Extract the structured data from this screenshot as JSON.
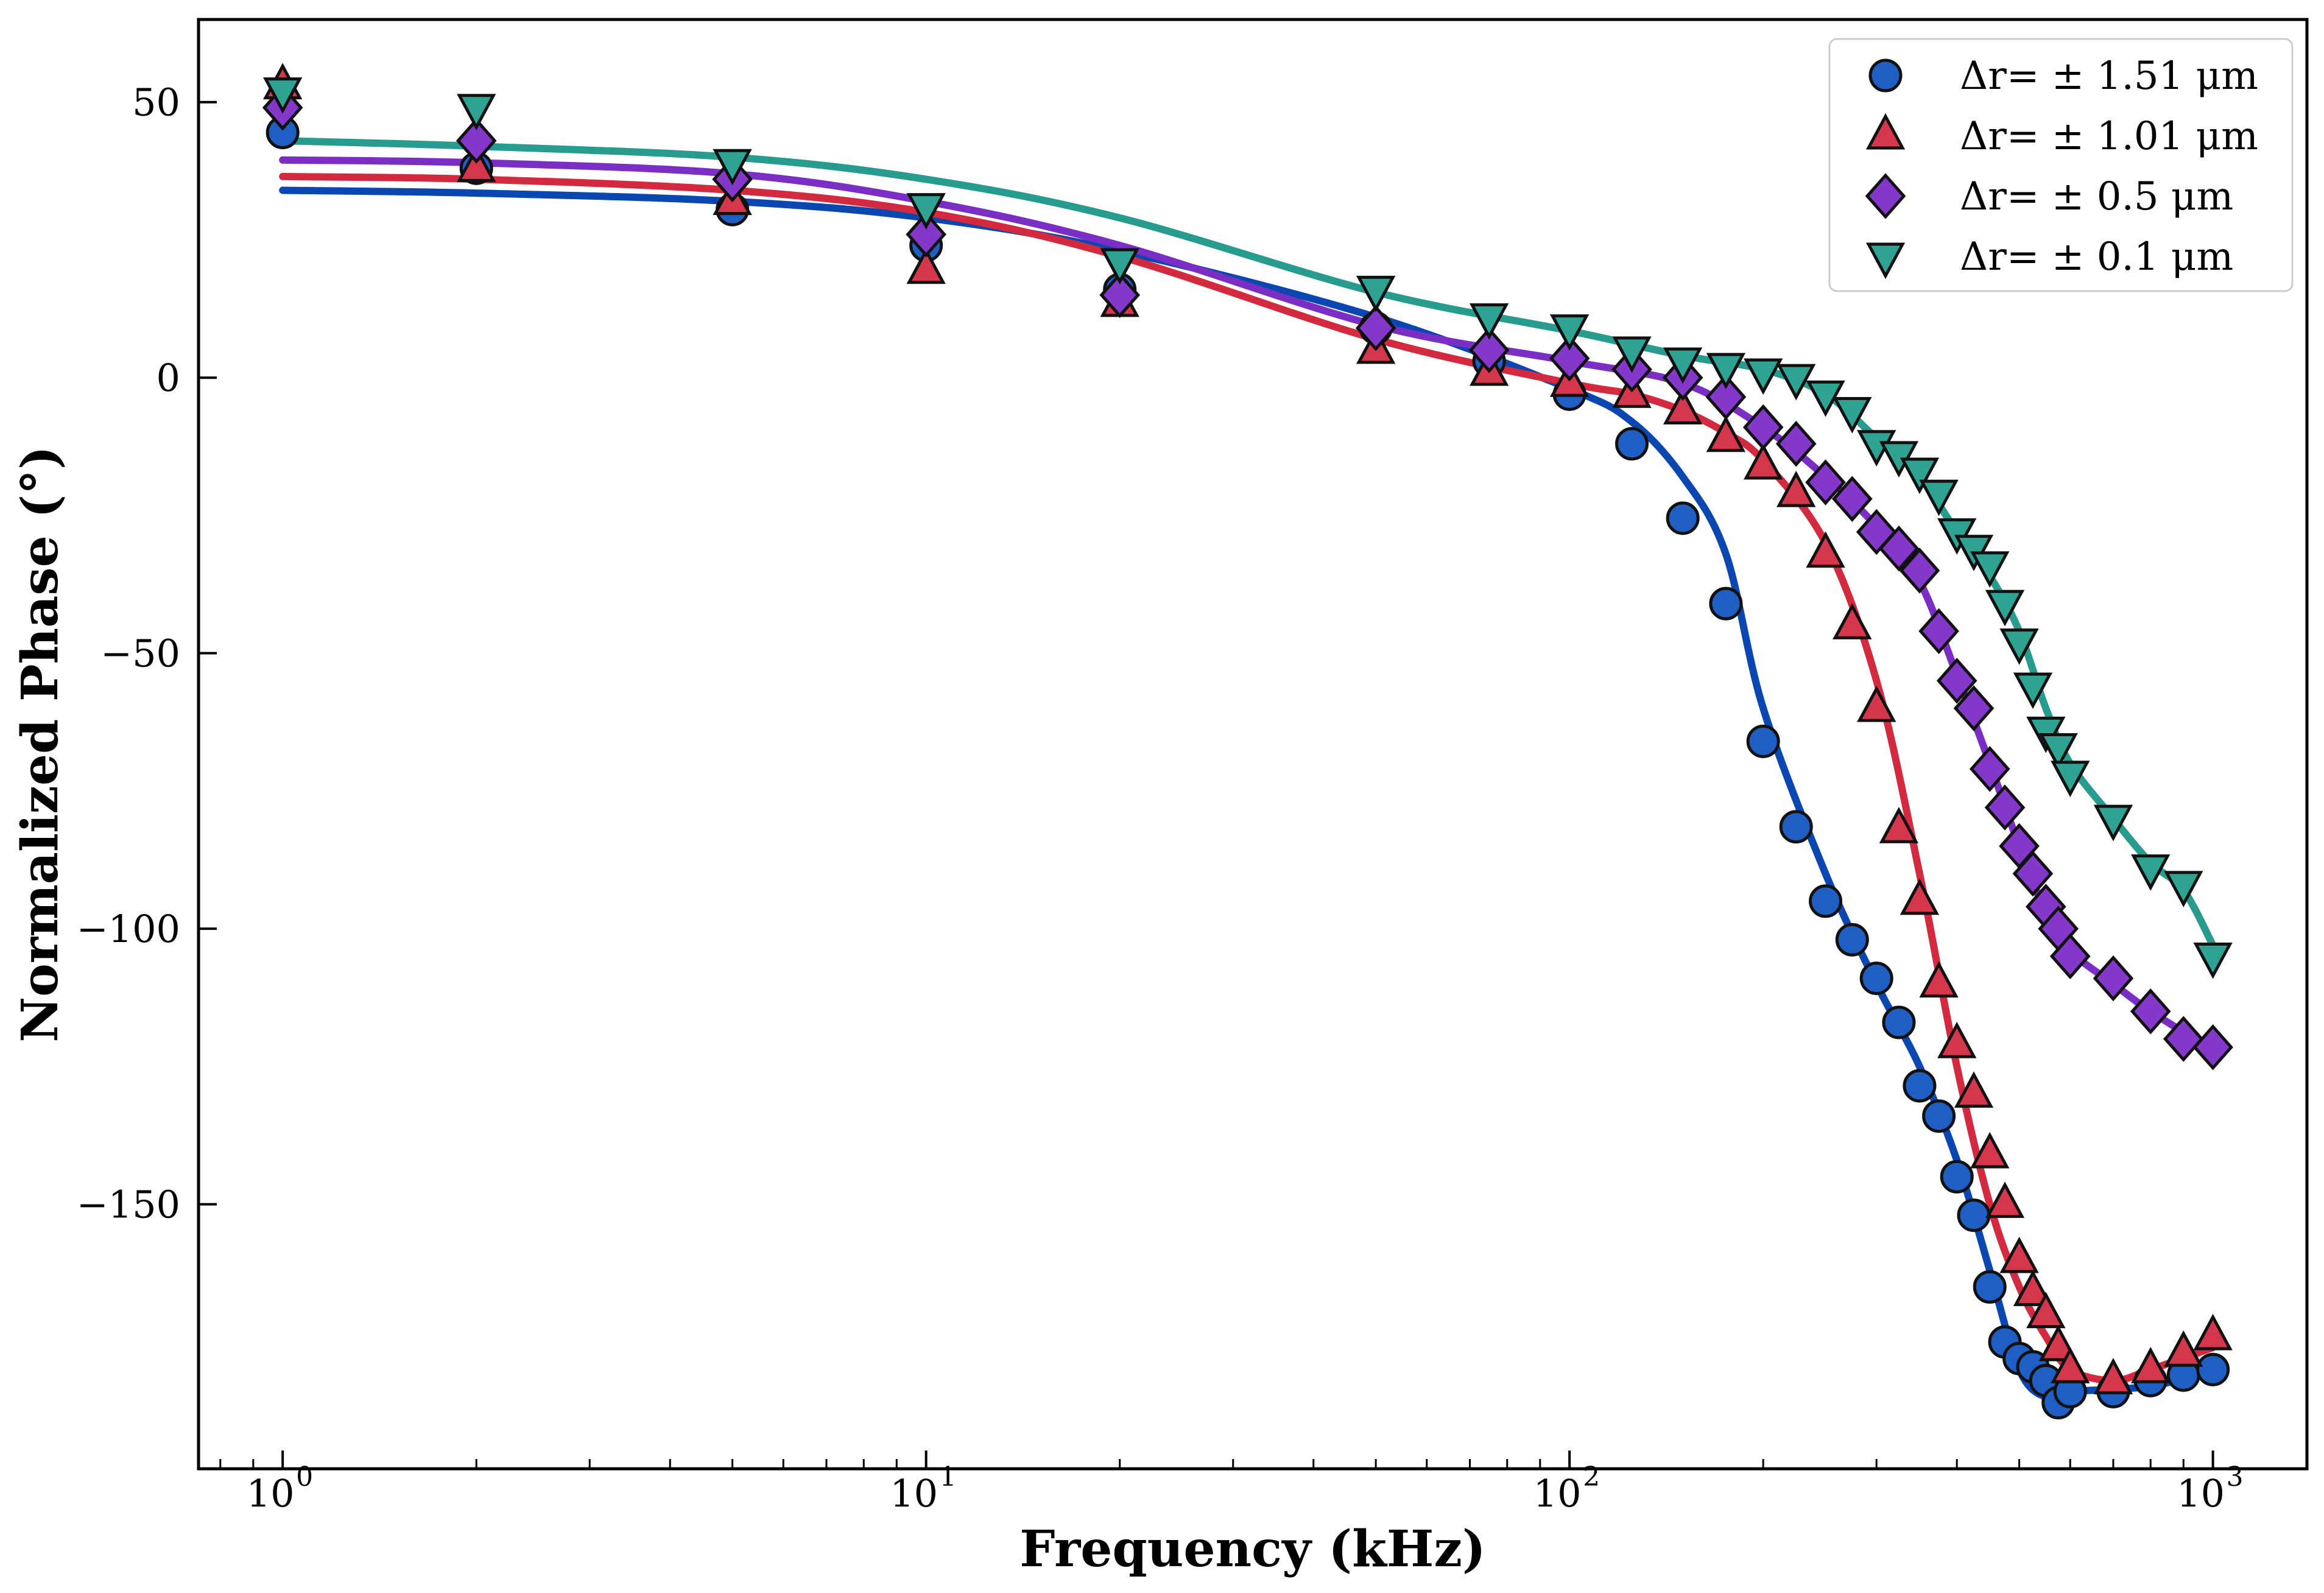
{
  "chart_data": {
    "type": "scatter",
    "title": "",
    "xlabel": "Frequency (kHz)",
    "ylabel": "Normalized Phase (°)",
    "xscale": "log",
    "xlim": [
      0.74,
      1400
    ],
    "ylim": [
      -198,
      65
    ],
    "grid": false,
    "legend_position": "top-right",
    "x_ticks": [
      {
        "value": 1,
        "label": "10",
        "exp": "0"
      },
      {
        "value": 10,
        "label": "10",
        "exp": "1"
      },
      {
        "value": 100,
        "label": "10",
        "exp": "2"
      },
      {
        "value": 1000,
        "label": "10",
        "exp": "3"
      }
    ],
    "y_ticks": [
      {
        "value": 50,
        "label": "50"
      },
      {
        "value": 0,
        "label": "0"
      },
      {
        "value": -50,
        "label": "−50"
      },
      {
        "value": -100,
        "label": "−100"
      },
      {
        "value": -150,
        "label": "−150"
      }
    ],
    "series": [
      {
        "name": "Δr= ± 1.51 μm",
        "marker": "circle",
        "color": "#0a47b0",
        "marker_color": "#1f5fc4",
        "points": [
          [
            1,
            44.5
          ],
          [
            2,
            38
          ],
          [
            5,
            30.5
          ],
          [
            10,
            24
          ],
          [
            20,
            16
          ],
          [
            50,
            9
          ],
          [
            75,
            3
          ],
          [
            100,
            -3
          ],
          [
            125,
            -12
          ],
          [
            150,
            -25.5
          ],
          [
            175,
            -41
          ],
          [
            200,
            -66
          ],
          [
            225,
            -81.5
          ],
          [
            250,
            -95
          ],
          [
            275,
            -102
          ],
          [
            300,
            -109
          ],
          [
            325,
            -117
          ],
          [
            350,
            -128.5
          ],
          [
            375,
            -134
          ],
          [
            400,
            -145
          ],
          [
            425,
            -152
          ],
          [
            450,
            -165
          ],
          [
            475,
            -175
          ],
          [
            500,
            -178
          ],
          [
            525,
            -179.5
          ],
          [
            550,
            -182
          ],
          [
            575,
            -186
          ],
          [
            600,
            -184
          ],
          [
            700,
            -184
          ],
          [
            800,
            -182
          ],
          [
            900,
            -181
          ],
          [
            1000,
            -180
          ]
        ],
        "fit": [
          [
            1,
            34
          ],
          [
            2,
            33.5
          ],
          [
            5,
            32
          ],
          [
            10,
            29
          ],
          [
            20,
            23
          ],
          [
            50,
            11
          ],
          [
            100,
            -2
          ],
          [
            125,
            -8
          ],
          [
            150,
            -18
          ],
          [
            175,
            -32
          ],
          [
            200,
            -60
          ],
          [
            250,
            -90
          ],
          [
            300,
            -110
          ],
          [
            350,
            -125
          ],
          [
            400,
            -142
          ],
          [
            450,
            -162
          ],
          [
            500,
            -180
          ],
          [
            550,
            -185
          ],
          [
            600,
            -184
          ],
          [
            800,
            -183
          ],
          [
            1000,
            -180
          ]
        ]
      },
      {
        "name": "Δr= ± 1.01 μm",
        "marker": "triangle-up",
        "color": "#d42a3f",
        "marker_color": "#d4364b",
        "points": [
          [
            1,
            53
          ],
          [
            2,
            38
          ],
          [
            5,
            32
          ],
          [
            10,
            19.5
          ],
          [
            20,
            13.5
          ],
          [
            50,
            5
          ],
          [
            75,
            1
          ],
          [
            100,
            -1
          ],
          [
            125,
            -3
          ],
          [
            150,
            -6
          ],
          [
            175,
            -11
          ],
          [
            200,
            -16
          ],
          [
            225,
            -21
          ],
          [
            250,
            -32
          ],
          [
            275,
            -45
          ],
          [
            300,
            -60
          ],
          [
            325,
            -82
          ],
          [
            350,
            -95
          ],
          [
            375,
            -110
          ],
          [
            400,
            -121
          ],
          [
            425,
            -130
          ],
          [
            450,
            -141
          ],
          [
            475,
            -150
          ],
          [
            500,
            -160
          ],
          [
            525,
            -166
          ],
          [
            550,
            -170
          ],
          [
            575,
            -176
          ],
          [
            600,
            -180
          ],
          [
            700,
            -182
          ],
          [
            800,
            -180
          ],
          [
            900,
            -177
          ],
          [
            1000,
            -174
          ]
        ],
        "fit": [
          [
            1,
            36.5
          ],
          [
            2,
            36
          ],
          [
            5,
            34
          ],
          [
            10,
            30
          ],
          [
            20,
            22
          ],
          [
            50,
            7
          ],
          [
            100,
            -1
          ],
          [
            125,
            -3
          ],
          [
            150,
            -6
          ],
          [
            175,
            -10
          ],
          [
            200,
            -15
          ],
          [
            250,
            -30
          ],
          [
            300,
            -55
          ],
          [
            350,
            -90
          ],
          [
            400,
            -125
          ],
          [
            450,
            -150
          ],
          [
            500,
            -165
          ],
          [
            550,
            -174
          ],
          [
            600,
            -180
          ],
          [
            700,
            -182
          ],
          [
            800,
            -180
          ],
          [
            1000,
            -176
          ]
        ]
      },
      {
        "name": "Δr= ± 0.5 μm",
        "marker": "diamond",
        "color": "#7b2ec4",
        "marker_color": "#8338c9",
        "points": [
          [
            1,
            49
          ],
          [
            2,
            43
          ],
          [
            5,
            36
          ],
          [
            10,
            26
          ],
          [
            20,
            15
          ],
          [
            50,
            9
          ],
          [
            75,
            5
          ],
          [
            100,
            3.5
          ],
          [
            125,
            1.5
          ],
          [
            150,
            0
          ],
          [
            175,
            -3.5
          ],
          [
            200,
            -9
          ],
          [
            225,
            -12
          ],
          [
            250,
            -19
          ],
          [
            275,
            -22
          ],
          [
            300,
            -28
          ],
          [
            325,
            -31
          ],
          [
            350,
            -35
          ],
          [
            375,
            -46
          ],
          [
            400,
            -55
          ],
          [
            425,
            -60
          ],
          [
            450,
            -71
          ],
          [
            475,
            -78
          ],
          [
            500,
            -85
          ],
          [
            525,
            -90
          ],
          [
            550,
            -96
          ],
          [
            575,
            -100
          ],
          [
            600,
            -105
          ],
          [
            700,
            -109
          ],
          [
            800,
            -115
          ],
          [
            900,
            -120
          ],
          [
            1000,
            -121.5
          ]
        ],
        "fit": [
          [
            1,
            39.5
          ],
          [
            2,
            39
          ],
          [
            5,
            37
          ],
          [
            10,
            32
          ],
          [
            20,
            24
          ],
          [
            50,
            9.5
          ],
          [
            100,
            3
          ],
          [
            150,
            -1
          ],
          [
            200,
            -9
          ],
          [
            250,
            -18
          ],
          [
            300,
            -27
          ],
          [
            350,
            -37
          ],
          [
            400,
            -54
          ],
          [
            450,
            -70
          ],
          [
            500,
            -85
          ],
          [
            550,
            -97
          ],
          [
            600,
            -104
          ],
          [
            700,
            -110
          ],
          [
            800,
            -115
          ],
          [
            1000,
            -122
          ]
        ]
      },
      {
        "name": "Δr= ± 0.1 μm",
        "marker": "triangle-down",
        "color": "#279b8e",
        "marker_color": "#2ea394",
        "points": [
          [
            1,
            52
          ],
          [
            2,
            49
          ],
          [
            5,
            39
          ],
          [
            10,
            31
          ],
          [
            20,
            21
          ],
          [
            50,
            16
          ],
          [
            75,
            11
          ],
          [
            100,
            9
          ],
          [
            125,
            5
          ],
          [
            150,
            3
          ],
          [
            175,
            2
          ],
          [
            200,
            1
          ],
          [
            225,
            0
          ],
          [
            250,
            -3
          ],
          [
            275,
            -6
          ],
          [
            300,
            -12
          ],
          [
            325,
            -14
          ],
          [
            350,
            -17
          ],
          [
            375,
            -21
          ],
          [
            400,
            -28
          ],
          [
            425,
            -31
          ],
          [
            450,
            -34
          ],
          [
            475,
            -41
          ],
          [
            500,
            -48
          ],
          [
            525,
            -56
          ],
          [
            550,
            -64
          ],
          [
            575,
            -67
          ],
          [
            600,
            -72
          ],
          [
            700,
            -80
          ],
          [
            800,
            -89
          ],
          [
            900,
            -92
          ],
          [
            1000,
            -105
          ]
        ],
        "fit": [
          [
            1,
            43
          ],
          [
            2,
            42
          ],
          [
            5,
            40
          ],
          [
            10,
            36
          ],
          [
            20,
            29
          ],
          [
            50,
            15.5
          ],
          [
            100,
            8.5
          ],
          [
            150,
            4
          ],
          [
            200,
            1.5
          ],
          [
            250,
            -3
          ],
          [
            300,
            -11
          ],
          [
            350,
            -18
          ],
          [
            400,
            -28
          ],
          [
            450,
            -36
          ],
          [
            500,
            -46
          ],
          [
            550,
            -60
          ],
          [
            600,
            -70
          ],
          [
            700,
            -80
          ],
          [
            800,
            -88
          ],
          [
            900,
            -93
          ],
          [
            1000,
            -103
          ]
        ]
      }
    ]
  }
}
